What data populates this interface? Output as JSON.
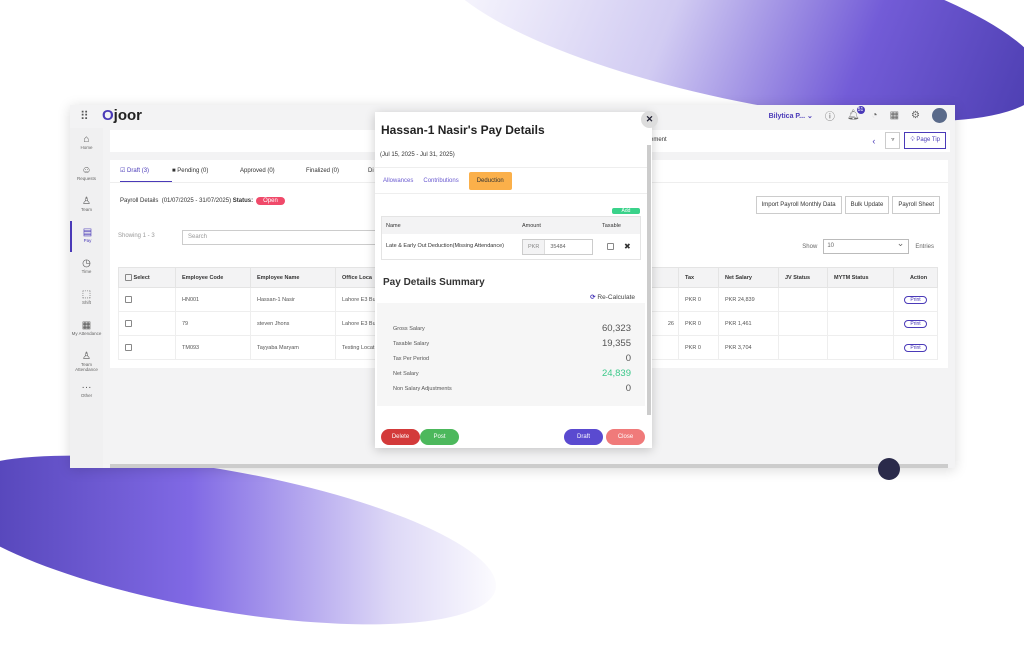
{
  "app": {
    "logo": "joor",
    "org": "Bilytica P...",
    "notifications": "51"
  },
  "sidebar": {
    "items": [
      {
        "label": "Home",
        "icon": "⌂"
      },
      {
        "label": "Requests",
        "icon": "☺"
      },
      {
        "label": "Team",
        "icon": "♙"
      },
      {
        "label": "Pay",
        "icon": "▤"
      },
      {
        "label": "Time",
        "icon": "◷"
      },
      {
        "label": "Shift",
        "icon": "⬚"
      },
      {
        "label": "My Attendance",
        "icon": "▦"
      },
      {
        "label": "Team Attendance",
        "icon": "♙"
      },
      {
        "label": "Other",
        "icon": "···"
      }
    ],
    "active": "Pay"
  },
  "breadcrumb": {
    "text": "ement",
    "page_tip": "Page Tip"
  },
  "tabs": [
    "Draft (3)",
    "Pending (0)",
    "Approved (0)",
    "Finalized (0)",
    "Di"
  ],
  "payroll": {
    "label": "Payroll Details",
    "range": "(01/07/2025 - 31/07/2025)",
    "status_label": "Status:",
    "status": "Open"
  },
  "actions": [
    "Import Payroll Monthly Data",
    "Bulk Update",
    "Payroll Sheet"
  ],
  "list": {
    "showing": "Showing 1 - 3",
    "search_placeholder": "Search",
    "show_label": "Show",
    "page_size": "10",
    "entries_label": "Entries"
  },
  "table": {
    "headers": [
      "Select",
      "Employee Code",
      "Employee Name",
      "Office Loca",
      "n",
      "Tax",
      "Net Salary",
      "JV Status",
      "MYTM Status",
      "Action"
    ],
    "rows": [
      [
        "HN001",
        "Hassan-1 Nasir",
        "Lahore E3 Bu",
        "",
        "PKR 0",
        "PKR 24,839",
        "",
        "",
        "Print"
      ],
      [
        "79",
        "steven Jhons",
        "Lahore E3 Bu",
        "26",
        "PKR 0",
        "PKR 1,461",
        "",
        "",
        "Print"
      ],
      [
        "TM093",
        "Tayyaba Maryam",
        "Testing Locat",
        "",
        "PKR 0",
        "PKR 3,704",
        "",
        "",
        "Print"
      ]
    ]
  },
  "modal": {
    "title": "Hassan-1 Nasir's Pay Details",
    "dates": "(Jul 15, 2025 - Jul 31, 2025)",
    "tabs": [
      "Allowances",
      "Contributions",
      "Deduction"
    ],
    "active_tab": "Deduction",
    "add": "Add",
    "deduction_headers": [
      "Name",
      "Amount",
      "Taxable"
    ],
    "deduction": {
      "name": "Late & Early Out Deduction(Missing Attendance)",
      "currency": "PKR",
      "amount": "35484",
      "taxable": false
    },
    "summary_title": "Pay Details Summary",
    "recalculate": "Re-Calculate",
    "summary": [
      {
        "label": "Gross Salary",
        "value": "60,323"
      },
      {
        "label": "Taxable Salary",
        "value": "19,355"
      },
      {
        "label": "Tax Per Period",
        "value": "0"
      },
      {
        "label": "Net Salary",
        "value": "24,839",
        "color": "#3cc88a"
      },
      {
        "label": "Non Salary Adjustments",
        "value": "0"
      }
    ],
    "buttons": {
      "delete": "Delete",
      "post": "Post",
      "draft": "Draft",
      "close": "Close"
    }
  }
}
